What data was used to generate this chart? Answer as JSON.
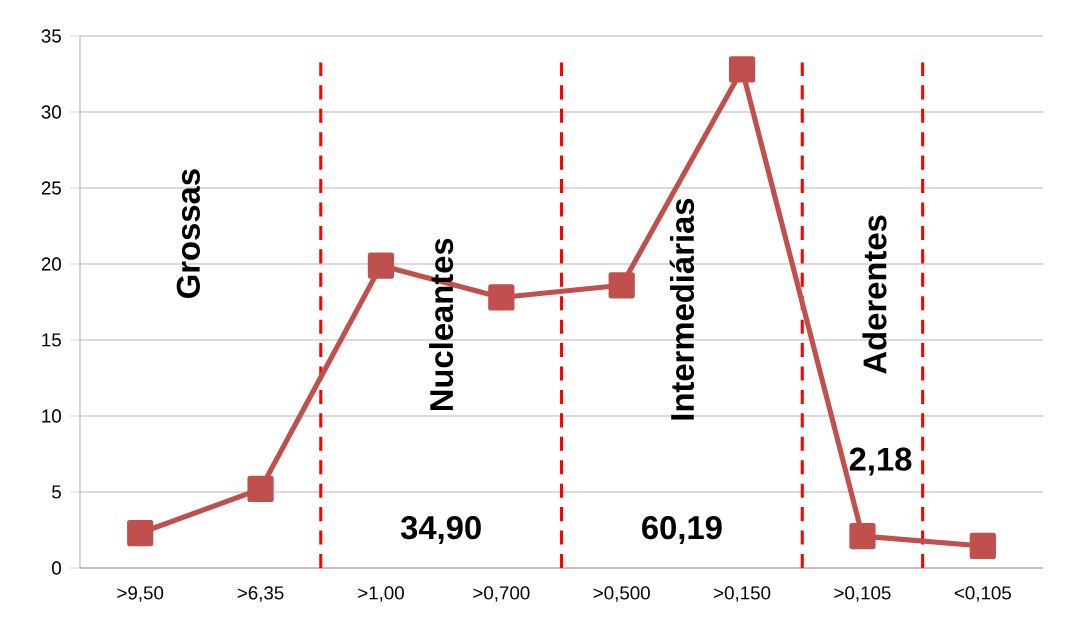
{
  "chart_data": {
    "type": "line",
    "categories": [
      ">9,50",
      ">6,35",
      ">1,00",
      ">0,700",
      ">0,500",
      ">0,150",
      ">0,105",
      "<0,105"
    ],
    "series": [
      {
        "color": "#c0504d",
        "values": [
          2.3,
          5.2,
          19.9,
          17.8,
          18.6,
          32.8,
          2.1,
          1.45
        ]
      }
    ],
    "ylim": [
      0,
      35
    ],
    "yticks": [
      0,
      5,
      10,
      15,
      20,
      25,
      30,
      35
    ],
    "grid": "y",
    "marker": "square",
    "line_style": "solid",
    "annotations": [
      "Grossas",
      "Nucleantes",
      "Intermediárias",
      "Aderentes",
      "34,90",
      "60,19",
      "2,18"
    ]
  }
}
